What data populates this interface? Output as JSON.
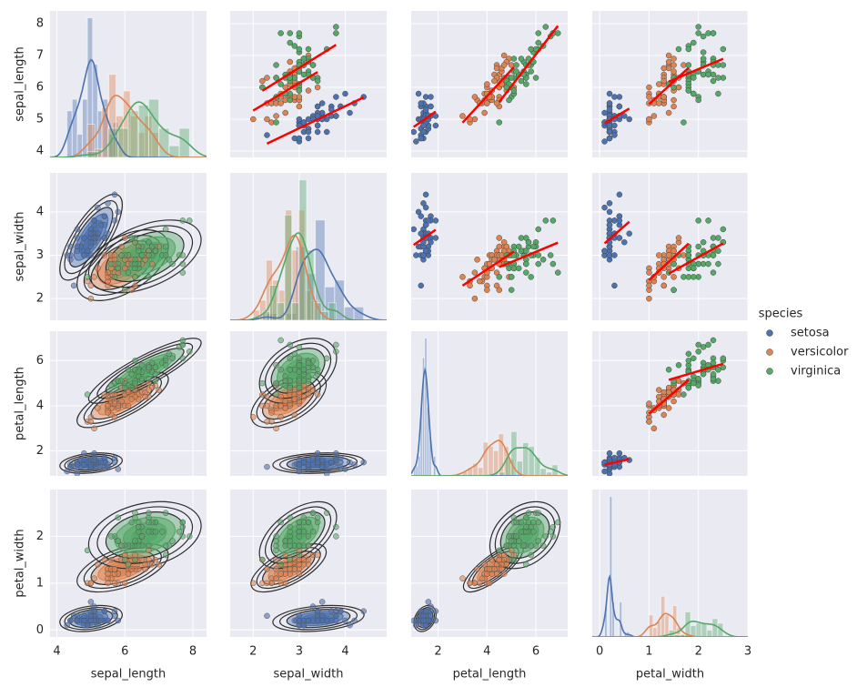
{
  "chart_data": {
    "type": "pairplot",
    "legend_title": "species",
    "variables": [
      {
        "name": "sepal_length",
        "lim": [
          3.8,
          8.4
        ],
        "xticks": [
          4,
          6,
          8
        ],
        "yticks": [
          4,
          5,
          6,
          7,
          8
        ]
      },
      {
        "name": "sepal_width",
        "lim": [
          1.5,
          4.9
        ],
        "xticks": [
          2,
          3,
          4
        ],
        "yticks": [
          2,
          3,
          4
        ]
      },
      {
        "name": "petal_length",
        "lim": [
          0.9,
          7.3
        ],
        "xticks": [
          2,
          4,
          6
        ],
        "yticks": [
          2,
          4,
          6
        ]
      },
      {
        "name": "petal_width",
        "lim": [
          -0.15,
          3.0
        ],
        "xticks": [
          0,
          1,
          2,
          3
        ],
        "yticks": [
          0,
          1,
          2
        ]
      }
    ],
    "series": [
      {
        "name": "setosa",
        "color": "#4c72b0",
        "values": [
          [
            5.1,
            4.9,
            4.7,
            4.6,
            5.0,
            5.4,
            4.6,
            5.0,
            4.4,
            4.9,
            5.4,
            4.8,
            4.8,
            4.3,
            5.8,
            5.7,
            5.4,
            5.1,
            5.7,
            5.1,
            5.4,
            5.1,
            4.6,
            5.1,
            4.8,
            5.0,
            5.0,
            5.2,
            5.2,
            4.7,
            4.8,
            5.4,
            5.2,
            5.5,
            4.9,
            5.0,
            5.5,
            4.9,
            4.4,
            5.1,
            5.0,
            4.5,
            4.4,
            5.0,
            5.1,
            4.8,
            5.1,
            4.6,
            5.3,
            5.0
          ],
          [
            3.5,
            3.0,
            3.2,
            3.1,
            3.6,
            3.9,
            3.4,
            3.4,
            2.9,
            3.1,
            3.7,
            3.4,
            3.0,
            3.0,
            4.0,
            4.4,
            3.9,
            3.5,
            3.8,
            3.8,
            3.4,
            3.7,
            3.6,
            3.3,
            3.4,
            3.0,
            3.4,
            3.5,
            3.4,
            3.2,
            3.1,
            3.4,
            4.1,
            4.2,
            3.1,
            3.2,
            3.5,
            3.1,
            3.0,
            3.4,
            3.5,
            2.3,
            3.2,
            3.5,
            3.8,
            3.0,
            3.8,
            3.2,
            3.7,
            3.3
          ],
          [
            1.4,
            1.4,
            1.3,
            1.5,
            1.4,
            1.7,
            1.4,
            1.5,
            1.4,
            1.5,
            1.5,
            1.6,
            1.4,
            1.1,
            1.2,
            1.5,
            1.3,
            1.4,
            1.7,
            1.5,
            1.7,
            1.5,
            1.0,
            1.7,
            1.9,
            1.6,
            1.6,
            1.5,
            1.4,
            1.6,
            1.6,
            1.5,
            1.5,
            1.4,
            1.5,
            1.2,
            1.3,
            1.5,
            1.3,
            1.5,
            1.3,
            1.3,
            1.3,
            1.6,
            1.9,
            1.4,
            1.6,
            1.4,
            1.5,
            1.4
          ],
          [
            0.2,
            0.2,
            0.2,
            0.2,
            0.2,
            0.4,
            0.3,
            0.2,
            0.2,
            0.1,
            0.2,
            0.2,
            0.1,
            0.1,
            0.2,
            0.4,
            0.4,
            0.3,
            0.3,
            0.3,
            0.2,
            0.4,
            0.2,
            0.5,
            0.2,
            0.2,
            0.4,
            0.2,
            0.2,
            0.2,
            0.2,
            0.4,
            0.1,
            0.2,
            0.1,
            0.2,
            0.2,
            0.1,
            0.2,
            0.2,
            0.3,
            0.3,
            0.2,
            0.6,
            0.4,
            0.3,
            0.2,
            0.2,
            0.2,
            0.2
          ]
        ]
      },
      {
        "name": "versicolor",
        "color": "#dd8452",
        "values": [
          [
            7.0,
            6.4,
            6.9,
            5.5,
            6.5,
            5.7,
            6.3,
            4.9,
            6.6,
            5.2,
            5.0,
            5.9,
            6.0,
            6.1,
            5.6,
            6.7,
            5.6,
            5.8,
            6.2,
            5.6,
            5.9,
            6.1,
            6.3,
            6.1,
            6.4,
            6.6,
            6.8,
            6.7,
            6.0,
            5.7,
            5.5,
            5.5,
            5.8,
            6.0,
            5.4,
            6.0,
            6.7,
            6.3,
            5.6,
            5.5,
            5.5,
            6.1,
            5.8,
            5.0,
            5.6,
            5.7,
            5.7,
            6.2,
            5.1,
            5.7
          ],
          [
            3.2,
            3.2,
            3.1,
            2.3,
            2.8,
            2.8,
            3.3,
            2.4,
            2.9,
            2.7,
            2.0,
            3.0,
            2.2,
            2.9,
            2.9,
            3.1,
            3.0,
            2.7,
            2.2,
            2.5,
            3.2,
            2.8,
            2.5,
            2.8,
            2.9,
            3.0,
            2.8,
            3.0,
            2.9,
            2.6,
            2.4,
            2.4,
            2.7,
            2.7,
            3.0,
            3.4,
            3.1,
            2.3,
            3.0,
            2.5,
            2.6,
            3.0,
            2.6,
            2.3,
            2.7,
            3.0,
            2.9,
            2.9,
            2.5,
            2.8
          ],
          [
            4.7,
            4.5,
            4.9,
            4.0,
            4.6,
            4.5,
            4.7,
            3.3,
            4.6,
            3.9,
            3.5,
            4.2,
            4.0,
            4.7,
            3.6,
            4.4,
            4.5,
            4.1,
            4.5,
            3.9,
            4.8,
            4.0,
            4.9,
            4.7,
            4.3,
            4.4,
            4.8,
            5.0,
            4.5,
            3.5,
            3.8,
            3.7,
            3.9,
            5.1,
            4.5,
            4.5,
            4.7,
            4.4,
            4.1,
            4.0,
            4.4,
            4.6,
            4.0,
            3.3,
            4.2,
            4.2,
            4.2,
            4.3,
            3.0,
            4.1
          ],
          [
            1.4,
            1.5,
            1.5,
            1.3,
            1.5,
            1.3,
            1.6,
            1.0,
            1.3,
            1.4,
            1.0,
            1.5,
            1.0,
            1.4,
            1.3,
            1.4,
            1.5,
            1.0,
            1.5,
            1.1,
            1.8,
            1.3,
            1.5,
            1.2,
            1.3,
            1.4,
            1.4,
            1.7,
            1.5,
            1.0,
            1.1,
            1.0,
            1.2,
            1.6,
            1.5,
            1.6,
            1.5,
            1.3,
            1.3,
            1.3,
            1.2,
            1.4,
            1.2,
            1.0,
            1.3,
            1.2,
            1.3,
            1.3,
            1.1,
            1.3
          ]
        ]
      },
      {
        "name": "virginica",
        "color": "#55a868",
        "values": [
          [
            6.3,
            5.8,
            7.1,
            6.3,
            6.5,
            7.6,
            4.9,
            7.3,
            6.7,
            7.2,
            6.5,
            6.4,
            6.8,
            5.7,
            5.8,
            6.4,
            6.5,
            7.7,
            7.7,
            6.0,
            6.9,
            5.6,
            7.7,
            6.3,
            6.7,
            7.2,
            6.2,
            6.1,
            6.4,
            7.2,
            7.4,
            7.9,
            6.4,
            6.3,
            6.1,
            7.7,
            6.3,
            6.4,
            6.0,
            6.9,
            6.7,
            6.9,
            5.8,
            6.8,
            6.7,
            6.7,
            6.3,
            6.5,
            6.2,
            5.9
          ],
          [
            3.3,
            2.7,
            3.0,
            2.9,
            3.0,
            3.0,
            2.5,
            2.9,
            2.5,
            3.6,
            3.2,
            2.7,
            3.0,
            2.5,
            2.8,
            3.2,
            3.0,
            3.8,
            2.6,
            2.2,
            3.2,
            2.8,
            2.8,
            2.7,
            3.3,
            3.2,
            2.8,
            3.0,
            2.8,
            3.0,
            2.8,
            3.8,
            2.8,
            2.8,
            2.6,
            3.0,
            3.4,
            3.1,
            3.0,
            3.1,
            3.1,
            3.1,
            2.7,
            3.2,
            3.3,
            3.0,
            2.5,
            3.0,
            3.4,
            3.0
          ],
          [
            6.0,
            5.1,
            5.9,
            5.6,
            5.8,
            6.6,
            4.5,
            6.3,
            5.8,
            6.1,
            5.1,
            5.3,
            5.5,
            5.0,
            5.1,
            5.3,
            5.5,
            6.7,
            6.9,
            5.0,
            5.7,
            4.9,
            6.7,
            4.9,
            5.7,
            6.0,
            4.8,
            4.9,
            5.6,
            5.8,
            6.1,
            6.4,
            5.6,
            5.1,
            5.6,
            6.1,
            5.6,
            5.5,
            4.8,
            5.4,
            5.6,
            5.1,
            5.1,
            5.9,
            5.7,
            5.2,
            5.0,
            5.2,
            5.4,
            5.1
          ],
          [
            2.5,
            1.9,
            2.1,
            1.8,
            2.2,
            2.1,
            1.7,
            1.8,
            1.8,
            2.5,
            2.0,
            1.9,
            2.1,
            2.0,
            2.4,
            2.3,
            1.8,
            2.2,
            2.3,
            1.5,
            2.3,
            2.0,
            2.0,
            1.8,
            2.1,
            1.8,
            1.8,
            1.8,
            2.1,
            1.6,
            1.9,
            2.0,
            2.2,
            1.5,
            1.4,
            2.3,
            2.4,
            1.8,
            1.8,
            2.1,
            2.4,
            2.3,
            1.9,
            2.3,
            2.5,
            2.3,
            1.9,
            2.0,
            2.3,
            1.8
          ]
        ]
      }
    ],
    "regression_color": "red"
  }
}
